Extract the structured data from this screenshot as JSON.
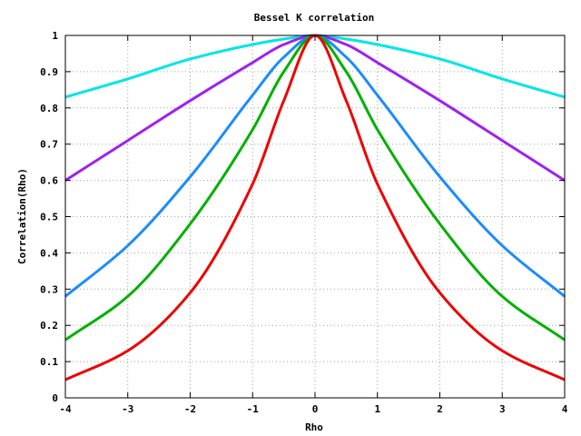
{
  "chart_data": {
    "type": "line",
    "title": "Bessel K correlation",
    "xlabel": "Rho",
    "ylabel": "Correlation(Rho)",
    "xlim": [
      -4,
      4
    ],
    "ylim": [
      0,
      1
    ],
    "x_ticks": [
      -4,
      -3,
      -2,
      -1,
      0,
      1,
      2,
      3,
      4
    ],
    "x_tick_labels": [
      "-4",
      "-3",
      "-2",
      "-1",
      "0",
      "1",
      "2",
      "3",
      "4"
    ],
    "y_ticks": [
      0,
      0.1,
      0.2,
      0.3,
      0.4,
      0.5,
      0.6,
      0.7,
      0.8,
      0.9,
      1
    ],
    "y_tick_labels": [
      "0",
      "0.1",
      "0.2",
      "0.3",
      "0.4",
      "0.5",
      "0.6",
      "0.7",
      "0.8",
      "0.9",
      "1"
    ],
    "grid": true,
    "x": [
      -4,
      -3,
      -2,
      -1,
      -0.5,
      0,
      0.5,
      1,
      2,
      3,
      4
    ],
    "series": [
      {
        "color": "#00e5e5",
        "values": [
          0.83,
          0.88,
          0.935,
          0.975,
          0.99,
          1.0,
          0.99,
          0.975,
          0.935,
          0.88,
          0.83
        ]
      },
      {
        "color": "#a020f0",
        "values": [
          0.6,
          0.71,
          0.82,
          0.925,
          0.975,
          1.0,
          0.975,
          0.925,
          0.82,
          0.71,
          0.6
        ]
      },
      {
        "color": "#1a8cff",
        "values": [
          0.28,
          0.42,
          0.61,
          0.835,
          0.94,
          1.0,
          0.94,
          0.835,
          0.61,
          0.42,
          0.28
        ]
      },
      {
        "color": "#00b000",
        "values": [
          0.16,
          0.28,
          0.48,
          0.74,
          0.9,
          1.0,
          0.9,
          0.74,
          0.48,
          0.28,
          0.16
        ]
      },
      {
        "color": "#ee0000",
        "values": [
          0.05,
          0.13,
          0.29,
          0.59,
          0.82,
          1.0,
          0.82,
          0.59,
          0.29,
          0.13,
          0.05
        ]
      }
    ]
  }
}
